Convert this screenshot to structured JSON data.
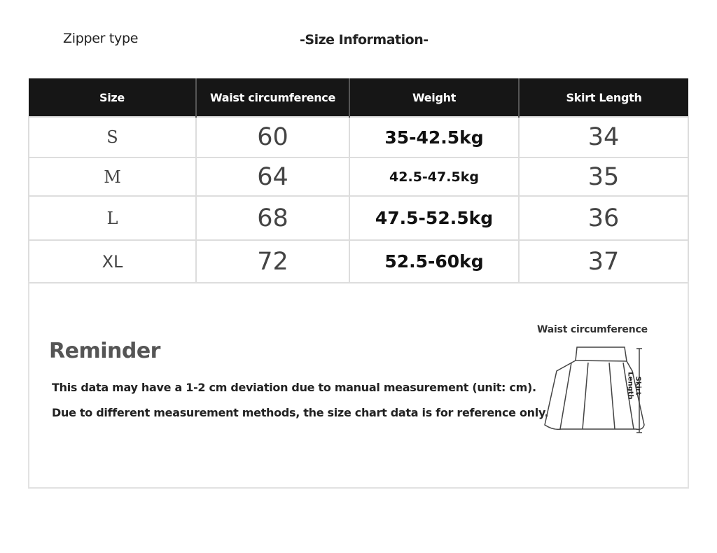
{
  "header": {
    "zipper_type": "Zipper type",
    "title": "-Size Information-"
  },
  "table": {
    "columns": [
      "Size",
      "Waist circumference",
      "Weight",
      "Skirt Length"
    ],
    "rows": [
      [
        "S",
        "60",
        "35-42.5kg",
        "34"
      ],
      [
        "M",
        "64",
        "42.5-47.5kg",
        "35"
      ],
      [
        "L",
        "68",
        "47.5-52.5kg",
        "36"
      ],
      [
        "XL",
        "72",
        "52.5-60kg",
        "37"
      ]
    ]
  },
  "reminder": {
    "title": "Reminder",
    "lines": [
      "This data may have a 1-2 cm deviation due to manual measurement (unit: cm).",
      "Due to different measurement methods, the size chart data is for reference only."
    ]
  },
  "diagram": {
    "waist_label": "Waist circumference",
    "length_label_1": "Skirt",
    "length_label_2": "Length",
    "icon": "skirt-diagram"
  }
}
